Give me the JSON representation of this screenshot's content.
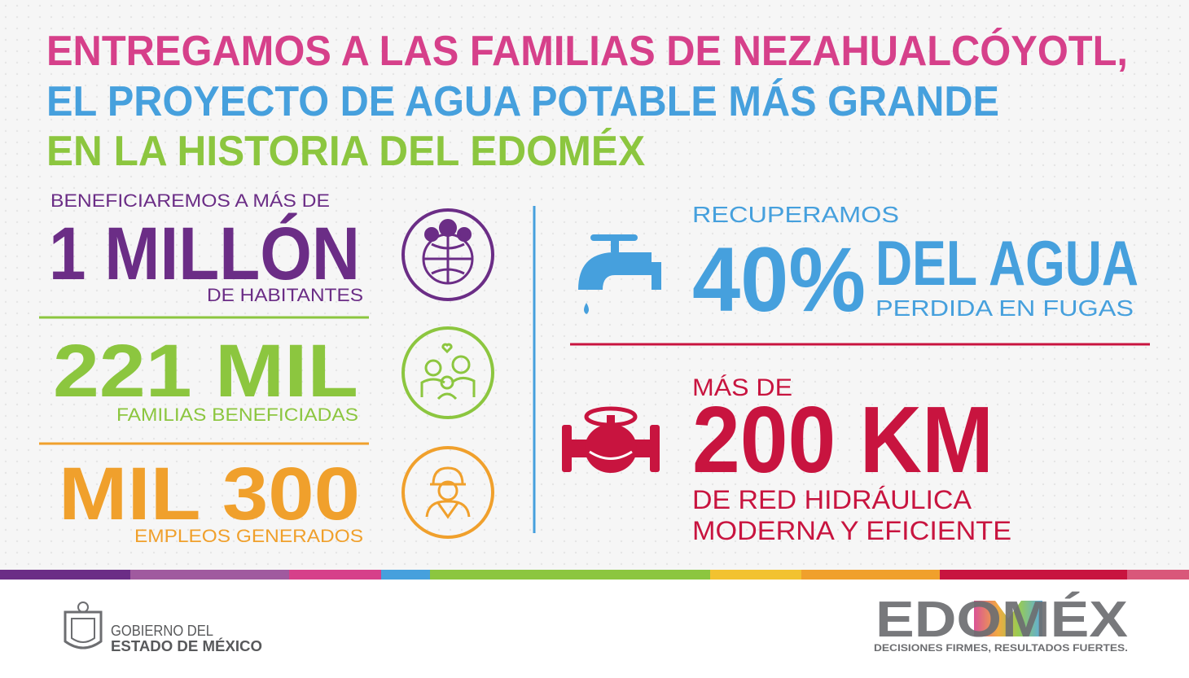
{
  "title": {
    "line1": "ENTREGAMOS A LAS FAMILIAS DE NEZAHUALCÓYOTL,",
    "line2": "EL PROYECTO DE AGUA POTABLE MÁS GRANDE",
    "line3": "EN LA HISTORIA DEL EDOMÉX"
  },
  "stats": {
    "residents": {
      "pre": "BENEFICIAREMOS A MÁS DE",
      "figure": "1 MILLÓN",
      "post": "DE HABITANTES"
    },
    "families": {
      "figure": "221 MIL",
      "post": "FAMILIAS BENEFICIADAS"
    },
    "jobs": {
      "figure": "MIL 300",
      "post": "EMPLEOS GENERADOS"
    },
    "water": {
      "pre": "RECUPERAMOS",
      "figure": "40%",
      "figure_text": "DEL AGUA",
      "post": "PERDIDA EN FUGAS"
    },
    "network": {
      "pre": "MÁS DE",
      "figure": "200 KM",
      "post_line1": "DE RED HIDRÁULICA",
      "post_line2": "MODERNA Y EFICIENTE"
    }
  },
  "footer": {
    "government_line1": "GOBIERNO DEL",
    "government_line2": "ESTADO DE MÉXICO",
    "brand": "EDOMÉX",
    "slogan": "DECISIONES FIRMES, RESULTADOS FUERTES."
  }
}
